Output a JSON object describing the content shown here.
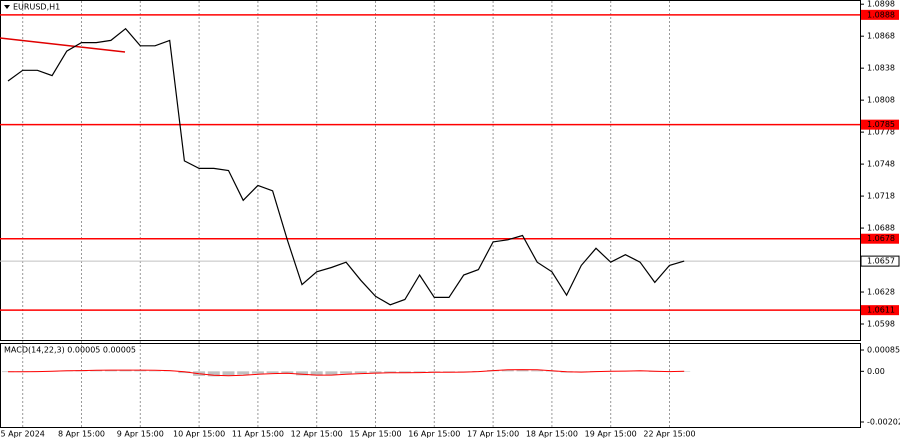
{
  "chart_data": [
    {
      "type": "line",
      "title": "EURUSD,H1",
      "categories": [
        null,
        "5 Apr 2024",
        null,
        null,
        null,
        "8 Apr 15:00",
        null,
        null,
        null,
        "9 Apr 15:00",
        null,
        null,
        null,
        "10 Apr 15:00",
        null,
        null,
        null,
        "11 Apr 15:00",
        null,
        null,
        null,
        "12 Apr 15:00",
        null,
        null,
        null,
        "15 Apr 15:00",
        null,
        null,
        null,
        "16 Apr 15:00",
        null,
        null,
        null,
        "17 Apr 15:00",
        null,
        null,
        null,
        "18 Apr 15:00",
        null,
        null,
        null,
        "19 Apr 15:00",
        null,
        null,
        null,
        "22 Apr 15:00",
        null
      ],
      "values": [
        1.0826,
        1.0836,
        1.0836,
        1.0831,
        1.0854,
        1.0862,
        1.0862,
        1.0864,
        1.0875,
        1.0859,
        1.0859,
        1.0864,
        1.0751,
        1.0744,
        1.0744,
        1.0742,
        1.0714,
        1.0728,
        1.0723,
        1.0677,
        1.0635,
        1.0647,
        1.0651,
        1.0656,
        1.0639,
        1.0624,
        1.0616,
        1.0621,
        1.0644,
        1.0623,
        1.0623,
        1.0644,
        1.0649,
        1.0675,
        1.0677,
        1.0681,
        1.0656,
        1.0647,
        1.0625,
        1.0653,
        1.0669,
        1.0656,
        1.0663,
        1.0656,
        1.0637,
        1.0653,
        1.0657
      ],
      "color": "#000000",
      "ylim": [
        1.0583,
        1.0901
      ],
      "yticks": [
        1.0898,
        1.0868,
        1.0838,
        1.0808,
        1.0778,
        1.0748,
        1.0718,
        1.0688,
        1.0628,
        1.0598
      ],
      "levels": [
        1.0888,
        1.0785,
        1.0678,
        1.0611
      ],
      "level_color": "#ff0000",
      "grid": "x"
    },
    {
      "type": "macd",
      "title": "MACD(14,22,3) 0.00005 0.00005",
      "values": [
        -3e-05,
        -2e-05,
        0,
        1e-05,
        3e-05,
        5e-05,
        5e-05,
        5e-05,
        6e-05,
        4e-05,
        2e-05,
        2e-05,
        -7e-05,
        -0.00018,
        -0.0002,
        -0.00017,
        -0.00013,
        -9e-05,
        -7e-05,
        -9e-05,
        -0.00016,
        -0.00017,
        -0.00013,
        -9e-05,
        -7e-05,
        -6e-05,
        -6e-05,
        -6e-05,
        -4e-05,
        -4e-05,
        -3e-05,
        -2e-05,
        1e-05,
        5e-05,
        7e-05,
        7e-05,
        4e-05,
        0,
        -5e-05,
        -3e-05,
        1e-05,
        1e-05,
        2e-05,
        2e-05,
        -2e-05,
        -1e-05,
        0
      ],
      "color": "#c0c0c0",
      "signal": [
        -2e-05,
        -2e-05,
        -1e-05,
        0,
        2e-05,
        3e-05,
        4e-05,
        5e-05,
        5e-05,
        5e-05,
        4e-05,
        3e-05,
        -2e-05,
        -0.0001,
        -0.00016,
        -0.00018,
        -0.00016,
        -0.00012,
        -9e-05,
        -8e-05,
        -0.00012,
        -0.00015,
        -0.00015,
        -0.00012,
        -9e-05,
        -7e-05,
        -6e-05,
        -6e-05,
        -5e-05,
        -4e-05,
        -4e-05,
        -3e-05,
        -1e-05,
        3e-05,
        6e-05,
        7e-05,
        6e-05,
        2e-05,
        -2e-05,
        -3e-05,
        -1e-05,
        0,
        1e-05,
        2e-05,
        0,
        -1e-05,
        0
      ],
      "signal_color": "#ff0000",
      "ylim": [
        -0.00222,
        0.00109
      ],
      "yticks": [
        0.00085,
        {
          "value": 0,
          "label": "0.00"
        },
        -0.00202
      ]
    }
  ]
}
